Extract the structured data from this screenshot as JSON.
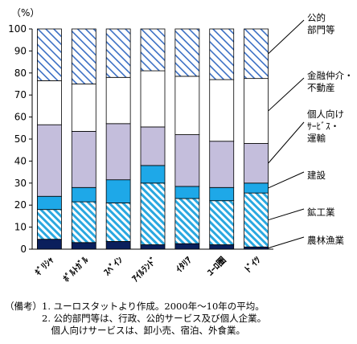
{
  "chart_data": {
    "type": "bar",
    "stacked": true,
    "unit_label": "（%）",
    "ylim": [
      0,
      100
    ],
    "yticks": [
      0,
      10,
      20,
      30,
      40,
      50,
      60,
      70,
      80,
      90,
      100
    ],
    "categories": [
      "ギリシャ",
      "ポルトガル",
      "スペイン",
      "アイルランド",
      "イタリア",
      "ユーロ圏",
      "ドイツ"
    ],
    "series": [
      {
        "name": "農林漁業",
        "values": [
          4.5,
          3.0,
          3.5,
          2.0,
          2.5,
          2.0,
          1.0
        ],
        "fill": "#0a1f5c",
        "pattern": "solid"
      },
      {
        "name": "鉱工業",
        "values": [
          13.5,
          18.5,
          17.5,
          28.0,
          20.5,
          20.0,
          24.5
        ],
        "fill": "#2aa8e0",
        "pattern": "hatch"
      },
      {
        "name": "建設",
        "values": [
          6.0,
          6.5,
          10.5,
          8.0,
          5.5,
          6.0,
          4.5
        ],
        "fill": "#1ea8e8",
        "pattern": "solid"
      },
      {
        "name": "個人向けサービス・運輸",
        "values": [
          32.5,
          25.5,
          25.5,
          17.5,
          23.5,
          21.0,
          18.0
        ],
        "fill": "#c4bedc",
        "pattern": "solid"
      },
      {
        "name": "金融仲介・不動産",
        "values": [
          20.0,
          21.5,
          21.0,
          25.5,
          26.5,
          28.0,
          29.5
        ],
        "fill": "#ffffff",
        "pattern": "solid"
      },
      {
        "name": "公的部門等",
        "values": [
          23.5,
          25.0,
          22.0,
          19.0,
          21.5,
          23.0,
          22.5
        ],
        "fill": "#3b6fc4",
        "pattern": "hatch-light"
      }
    ],
    "legend_labels": [
      {
        "lines": [
          "公的",
          "部門等"
        ]
      },
      {
        "lines": [
          "金融仲介・",
          "不動産"
        ]
      },
      {
        "lines": [
          "個人向け",
          "ｻｰﾋﾞｽ・",
          "運輸"
        ]
      },
      {
        "lines": [
          "建設"
        ]
      },
      {
        "lines": [
          "鉱工業"
        ]
      },
      {
        "lines": [
          "農林漁業"
        ]
      }
    ],
    "category_labels": [
      "ｷﾞﾘｼｬ",
      "ﾎﾟﾙﾄｶﾞﾙ",
      "ｽﾍﾟｲﾝ",
      "ｱｲﾙﾗﾝﾄﾞ",
      "ｲﾀﾘｱ",
      "ﾕｰﾛ圏",
      "ﾄﾞｲﾂ"
    ],
    "grid": false,
    "legend": "right"
  },
  "notes": {
    "line1": "（備考）1. ユーロスタットより作成。2000年～10年の平均。",
    "line2": "　　　　2. 公的部門等は、行政、公的サービス及び個人企業。",
    "line3": "　　　　　個人向けサービスは、卸小売、宿泊、外食業。"
  }
}
